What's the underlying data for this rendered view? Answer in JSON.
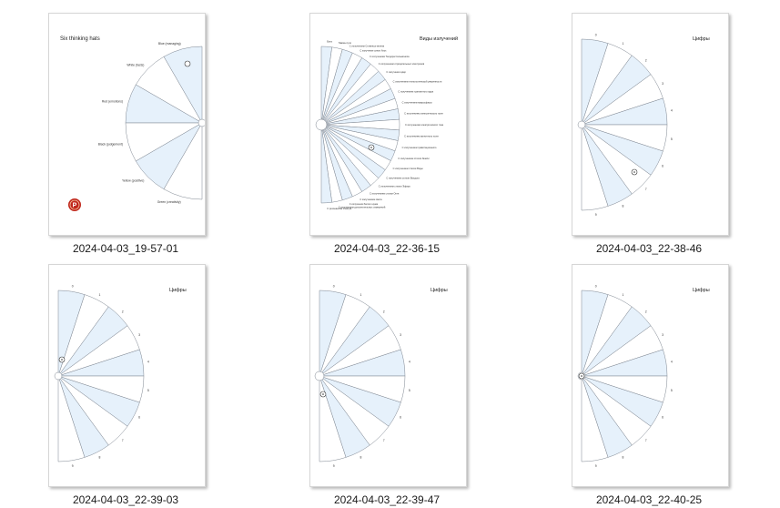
{
  "thumbnails": [
    {
      "caption": "2024-04-03_19-57-01",
      "title": "Six thinking hats",
      "labels": [
        "Blue (managing)",
        "White (facts)",
        "Red (emotions)",
        "Black (judgement)",
        "Yellow (positive)",
        "Green (creativity)"
      ],
      "has_logo": true
    },
    {
      "caption": "2024-04-03_22-36-15",
      "title": "Виды излучений",
      "labels": [
        "Бэта",
        "Гамма-лучи",
        "С излучением Стивенса-зелена",
        "С излучение синих блох",
        "С излучением Теодора Сальмоноса",
        "С излучением отрицательных электронов",
        "С излучения ядер",
        "С излучением технологической уверенности",
        "С излучением транзитного ядра",
        "С излучением макросферы",
        "С излучением электрического поля",
        "С излучением электрического тока",
        "С излучением магнитного поля",
        "С излучением гравитационного",
        "С излучением стихии Земли",
        "С излучением стихии Воды",
        "С излучением стихии Воздуха",
        "С излучением стихии Эфира",
        "С излучением стихии Огня",
        "С излучением света",
        "С излучения белого шума",
        "С излучением дополнительных измерений",
        "С резонансом спектра"
      ]
    },
    {
      "caption": "2024-04-03_22-38-46",
      "title": "Цифры",
      "labels": [
        "0",
        "1",
        "2",
        "3",
        "4",
        "5",
        "6",
        "7",
        "8",
        "9"
      ]
    },
    {
      "caption": "2024-04-03_22-39-03",
      "title": "Цифры",
      "labels": [
        "0",
        "1",
        "2",
        "3",
        "4",
        "5",
        "6",
        "7",
        "8",
        "9"
      ]
    },
    {
      "caption": "2024-04-03_22-39-47",
      "title": "Цифры",
      "labels": [
        "0",
        "1",
        "2",
        "3",
        "4",
        "5",
        "6",
        "7",
        "8",
        "9"
      ]
    },
    {
      "caption": "2024-04-03_22-40-25",
      "title": "Цифры",
      "labels": [
        "0",
        "1",
        "2",
        "3",
        "4",
        "5",
        "6",
        "7",
        "8",
        "9"
      ]
    }
  ],
  "colors": {
    "sector_fill_alt": "#e6f1fb",
    "sector_stroke": "#7d8590",
    "logo": "#c0261b"
  }
}
